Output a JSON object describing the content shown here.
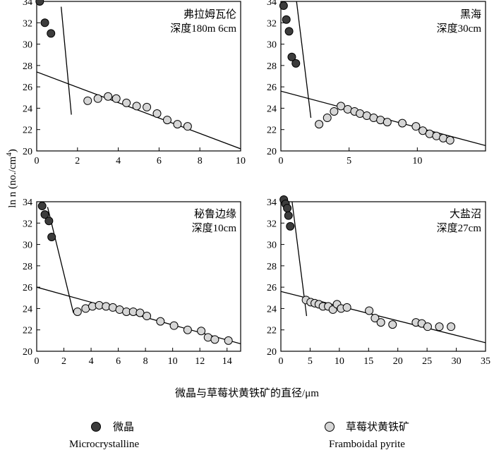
{
  "figure": {
    "ylabel": "ln n (no./cm",
    "ylabel_sup": "4",
    "ylabel_close": ")",
    "xlabel": "微晶与草莓状黄铁矿的直径/μm"
  },
  "legend": {
    "micro_cn": "微晶",
    "micro_en": "Microcrystalline",
    "framb_cn": "草莓状黄铁矿",
    "framb_en": "Framboidal pyrite",
    "micro_color": "#3c3c3c",
    "framb_color": "#d6d6d6"
  },
  "chart_data": [
    {
      "type": "scatter",
      "label_lines": [
        "弗拉姆瓦伦",
        "深度180m  6cm"
      ],
      "xlim": [
        0,
        10
      ],
      "xticks": [
        0,
        2,
        4,
        6,
        8,
        10
      ],
      "ylim": [
        20,
        34
      ],
      "yticks": [
        20,
        22,
        24,
        26,
        28,
        30,
        32,
        34
      ],
      "series": [
        {
          "points": [
            [
              0.15,
              34.0
            ],
            [
              0.4,
              32.0
            ],
            [
              0.7,
              31.0
            ]
          ]
        },
        {
          "points": [
            [
              2.5,
              24.7
            ],
            [
              3.0,
              24.9
            ],
            [
              3.5,
              25.1
            ],
            [
              3.9,
              24.9
            ],
            [
              4.4,
              24.5
            ],
            [
              4.9,
              24.2
            ],
            [
              5.4,
              24.1
            ],
            [
              5.9,
              23.5
            ],
            [
              6.4,
              22.9
            ],
            [
              6.9,
              22.5
            ],
            [
              7.4,
              22.3
            ]
          ]
        }
      ],
      "fit_lines": [
        {
          "from": [
            1.2,
            33.5
          ],
          "to": [
            1.7,
            23.4
          ]
        },
        {
          "from": [
            0,
            27.4
          ],
          "to": [
            10,
            20.2
          ]
        }
      ]
    },
    {
      "type": "scatter",
      "label_lines": [
        "黑海",
        "深度30cm"
      ],
      "xlim": [
        0,
        15
      ],
      "xticks": [
        0,
        5,
        10
      ],
      "ylim": [
        20,
        34
      ],
      "yticks": [
        20,
        22,
        24,
        26,
        28,
        30,
        32,
        34
      ],
      "series": [
        {
          "points": [
            [
              0.2,
              33.6
            ],
            [
              0.4,
              32.3
            ],
            [
              0.6,
              31.2
            ],
            [
              0.8,
              28.8
            ],
            [
              1.1,
              28.2
            ]
          ]
        },
        {
          "points": [
            [
              2.8,
              22.5
            ],
            [
              3.4,
              23.1
            ],
            [
              3.9,
              23.7
            ],
            [
              4.4,
              24.2
            ],
            [
              4.9,
              23.9
            ],
            [
              5.4,
              23.7
            ],
            [
              5.8,
              23.5
            ],
            [
              6.3,
              23.3
            ],
            [
              6.8,
              23.1
            ],
            [
              7.3,
              22.9
            ],
            [
              7.8,
              22.7
            ],
            [
              8.9,
              22.6
            ],
            [
              9.9,
              22.3
            ],
            [
              10.4,
              21.9
            ],
            [
              10.9,
              21.6
            ],
            [
              11.4,
              21.4
            ],
            [
              11.9,
              21.2
            ],
            [
              12.4,
              21.0
            ]
          ]
        }
      ],
      "fit_lines": [
        {
          "from": [
            1.1,
            34.5
          ],
          "to": [
            2.2,
            23.1
          ]
        },
        {
          "from": [
            0,
            25.6
          ],
          "to": [
            15,
            20.5
          ]
        }
      ]
    },
    {
      "type": "scatter",
      "label_lines": [
        "秘鲁边缘",
        "深度10cm"
      ],
      "xlim": [
        0,
        15
      ],
      "xticks": [
        0,
        2,
        4,
        6,
        8,
        10,
        12,
        14
      ],
      "ylim": [
        20,
        34
      ],
      "yticks": [
        20,
        22,
        24,
        26,
        28,
        30,
        32,
        34
      ],
      "series": [
        {
          "points": [
            [
              0.4,
              33.6
            ],
            [
              0.6,
              32.8
            ],
            [
              0.9,
              32.2
            ],
            [
              1.1,
              30.7
            ]
          ]
        },
        {
          "points": [
            [
              3.0,
              23.7
            ],
            [
              3.6,
              24.0
            ],
            [
              4.1,
              24.2
            ],
            [
              4.6,
              24.3
            ],
            [
              5.1,
              24.2
            ],
            [
              5.6,
              24.1
            ],
            [
              6.1,
              23.9
            ],
            [
              6.6,
              23.7
            ],
            [
              7.1,
              23.7
            ],
            [
              7.6,
              23.6
            ],
            [
              8.1,
              23.3
            ],
            [
              9.1,
              22.8
            ],
            [
              10.1,
              22.4
            ],
            [
              11.1,
              22.0
            ],
            [
              12.1,
              21.9
            ],
            [
              12.6,
              21.3
            ],
            [
              13.1,
              21.1
            ],
            [
              14.1,
              21.0
            ]
          ]
        }
      ],
      "fit_lines": [
        {
          "from": [
            0.8,
            33.5
          ],
          "to": [
            2.7,
            23.6
          ]
        },
        {
          "from": [
            0,
            26.0
          ],
          "to": [
            15,
            20.7
          ]
        }
      ]
    },
    {
      "type": "scatter",
      "label_lines": [
        "大盐沼",
        "深度27cm"
      ],
      "xlim": [
        0,
        35
      ],
      "xticks": [
        0,
        5,
        10,
        15,
        20,
        25,
        30,
        35
      ],
      "ylim": [
        20,
        34
      ],
      "yticks": [
        20,
        22,
        24,
        26,
        28,
        30,
        32,
        34
      ],
      "series": [
        {
          "points": [
            [
              0.5,
              34.2
            ],
            [
              0.8,
              33.8
            ],
            [
              1.1,
              33.4
            ],
            [
              1.3,
              32.7
            ],
            [
              1.6,
              31.7
            ]
          ]
        },
        {
          "points": [
            [
              4.3,
              24.8
            ],
            [
              5.1,
              24.6
            ],
            [
              5.8,
              24.5
            ],
            [
              6.5,
              24.4
            ],
            [
              7.2,
              24.2
            ],
            [
              8.1,
              24.2
            ],
            [
              8.9,
              23.9
            ],
            [
              9.6,
              24.4
            ],
            [
              10.3,
              24.0
            ],
            [
              11.3,
              24.1
            ],
            [
              15.1,
              23.8
            ],
            [
              16.1,
              23.1
            ],
            [
              17.1,
              22.7
            ],
            [
              19.1,
              22.5
            ],
            [
              23.1,
              22.7
            ],
            [
              24.1,
              22.6
            ],
            [
              25.1,
              22.3
            ],
            [
              27.1,
              22.3
            ],
            [
              29.1,
              22.3
            ]
          ]
        }
      ],
      "fit_lines": [
        {
          "from": [
            1.8,
            34.5
          ],
          "to": [
            4.4,
            23.3
          ]
        },
        {
          "from": [
            0,
            25.6
          ],
          "to": [
            35,
            20.8
          ]
        }
      ]
    }
  ]
}
